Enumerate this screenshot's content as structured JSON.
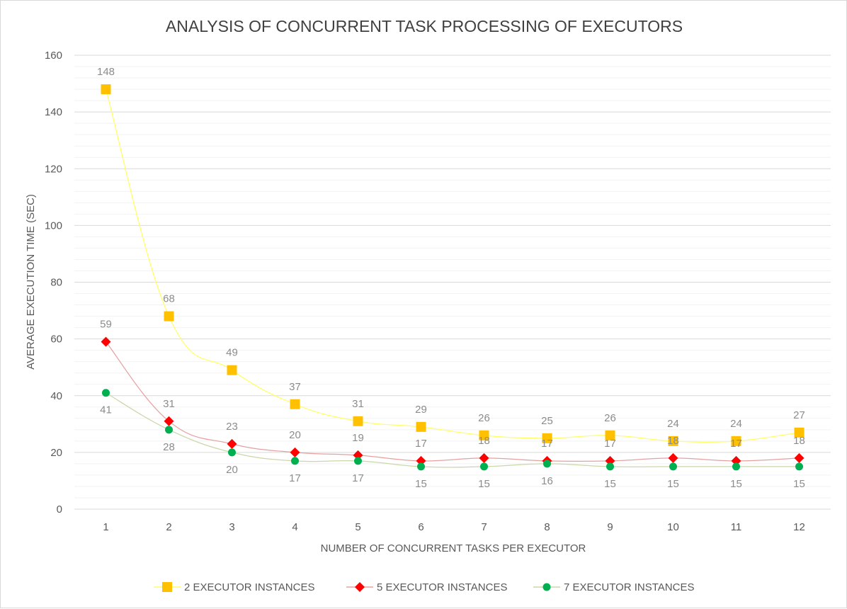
{
  "chart_data": {
    "type": "line",
    "title": "ANALYSIS OF CONCURRENT TASK PROCESSING OF EXECUTORS",
    "xlabel": "NUMBER OF CONCURRENT TASKS PER EXECUTOR",
    "ylabel": "AVERAGE EXECUTION TIME (SEC)",
    "categories": [
      "1",
      "2",
      "3",
      "4",
      "5",
      "6",
      "7",
      "8",
      "9",
      "10",
      "11",
      "12"
    ],
    "ylim": [
      0,
      160
    ],
    "yticks": [
      "0",
      "20",
      "40",
      "60",
      "80",
      "100",
      "120",
      "140",
      "160"
    ],
    "grid": true,
    "legend_position": "bottom",
    "series": [
      {
        "name": "2 EXECUTOR INSTANCES",
        "values": [
          148,
          68,
          49,
          37,
          31,
          29,
          26,
          25,
          26,
          24,
          24,
          27
        ],
        "color": "#ffc000",
        "line_color": "#ffff66",
        "marker": "square"
      },
      {
        "name": "5 EXECUTOR INSTANCES",
        "values": [
          59,
          31,
          23,
          20,
          19,
          17,
          18,
          17,
          17,
          18,
          17,
          18
        ],
        "color": "#ff0000",
        "line_color": "#e6a0a0",
        "marker": "diamond"
      },
      {
        "name": "7 EXECUTOR INSTANCES",
        "values": [
          41,
          28,
          20,
          17,
          17,
          15,
          15,
          16,
          15,
          15,
          15,
          15
        ],
        "color": "#00b050",
        "line_color": "#c8d8a8",
        "marker": "circle"
      }
    ]
  }
}
